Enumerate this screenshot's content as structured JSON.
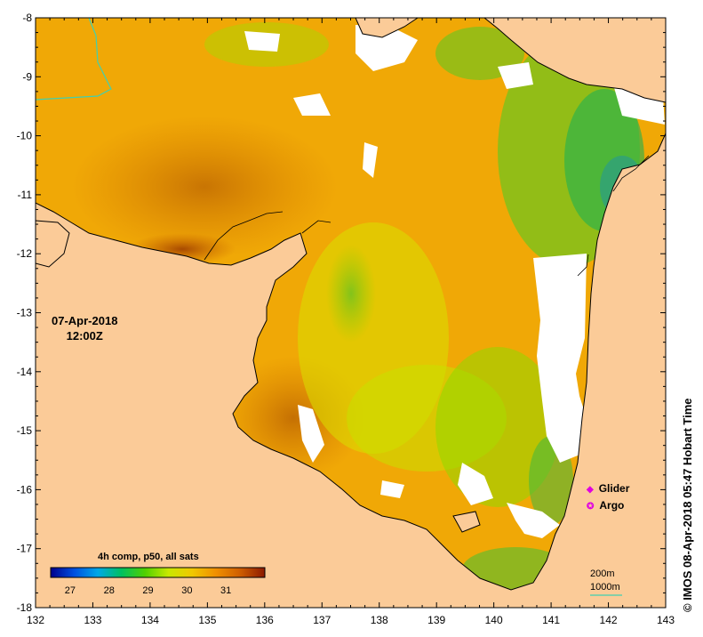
{
  "map": {
    "lat_range": [
      -18,
      -8
    ],
    "lon_range": [
      132,
      143
    ],
    "y_tick_labels": [
      "-8",
      "-9",
      "-10",
      "-11",
      "-12",
      "-13",
      "-14",
      "-15",
      "-16",
      "-17",
      "-18"
    ],
    "x_tick_labels": [
      "132",
      "133",
      "134",
      "135",
      "136",
      "137",
      "138",
      "139",
      "140",
      "141",
      "142",
      "143"
    ],
    "land_color": "#fbcb98",
    "nodata_color": "#ffffff"
  },
  "date": {
    "line1": "07-Apr-2018",
    "line2": "12:00Z"
  },
  "colorbar": {
    "title": "4h comp, p50, all sats",
    "tick_labels": [
      "27",
      "28",
      "29",
      "30",
      "31"
    ],
    "range": [
      26.5,
      32
    ],
    "colors": [
      "#00008c",
      "#0050e0",
      "#00a8e8",
      "#00c060",
      "#50d000",
      "#c8e800",
      "#f0c800",
      "#f09000",
      "#d06000",
      "#8c1a00"
    ]
  },
  "legend": {
    "glider_label": "Glider",
    "argo_label": "Argo",
    "marker_color": "#e000e0"
  },
  "contours": {
    "label_200": "200m",
    "label_1000": "1000m",
    "color_1000": "#40d0b0"
  },
  "credit": "© IMOS 08-Apr-2018 05:47 Hobart Time"
}
